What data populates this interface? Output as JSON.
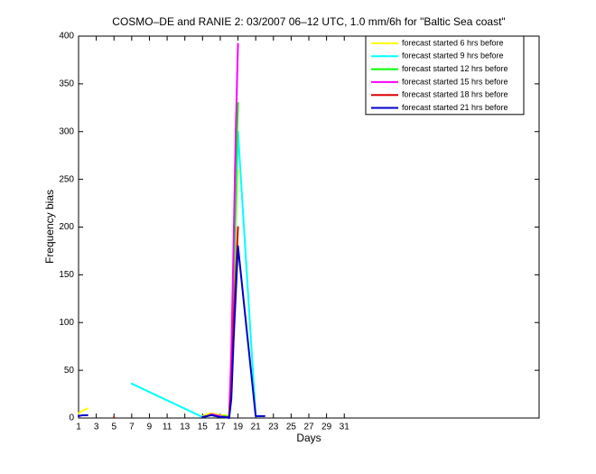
{
  "chart_data": {
    "type": "line",
    "title": "COSMO–DE and RANIE 2: 03/2007 06–12 UTC, 1.0 mm/6h for \"Baltic Sea coast\"",
    "x_label": "Days",
    "y_label": "Frequency bias",
    "x": [
      1,
      1.5,
      2,
      5,
      7,
      15,
      15.5,
      16,
      16.5,
      17,
      17.5,
      18,
      18.25,
      18.5,
      18.75,
      19,
      21,
      21.5,
      22
    ],
    "series": [
      {
        "name": "forecast started 6 hrs before",
        "color": "#ffff00",
        "values": [
          5,
          8,
          10,
          null,
          null,
          2,
          4,
          5,
          4,
          3,
          3,
          2,
          40,
          120,
          200,
          260,
          null,
          null,
          null
        ]
      },
      {
        "name": "forecast started 9 hrs before",
        "color": "#00ffff",
        "values": [
          null,
          null,
          null,
          null,
          36,
          1,
          2,
          3,
          2,
          2,
          1,
          1,
          50,
          140,
          220,
          300,
          2,
          2,
          null
        ]
      },
      {
        "name": "forecast started 12 hrs before",
        "color": "#00ff00",
        "values": [
          null,
          null,
          null,
          null,
          null,
          1,
          2,
          3,
          3,
          2,
          2,
          1,
          60,
          150,
          250,
          330,
          null,
          null,
          null
        ]
      },
      {
        "name": "forecast started 15 hrs before",
        "color": "#ff00ff",
        "values": [
          null,
          null,
          null,
          null,
          null,
          1,
          2,
          4,
          3,
          2,
          1,
          1,
          70,
          180,
          300,
          392,
          null,
          null,
          null
        ]
      },
      {
        "name": "forecast started 18 hrs before",
        "color": "#dd0000",
        "values": [
          2,
          null,
          null,
          1,
          null,
          1,
          2,
          3,
          2,
          1,
          1,
          1,
          30,
          100,
          150,
          200,
          null,
          null,
          null
        ]
      },
      {
        "name": "forecast started 21 hrs before",
        "color": "#0000cc",
        "values": [
          2,
          3,
          3,
          null,
          null,
          1,
          2,
          3,
          2,
          1,
          1,
          0,
          20,
          80,
          130,
          180,
          2,
          2,
          2
        ]
      }
    ],
    "xlim": [
      1,
      53
    ],
    "xticks": [
      1,
      3,
      5,
      7,
      9,
      11,
      13,
      15,
      17,
      19,
      21,
      23,
      25,
      27,
      29,
      31
    ],
    "ylim": [
      0,
      400
    ],
    "yticks": [
      0,
      50,
      100,
      150,
      200,
      250,
      300,
      350,
      400
    ],
    "grid": false,
    "legend": "upper-right"
  }
}
